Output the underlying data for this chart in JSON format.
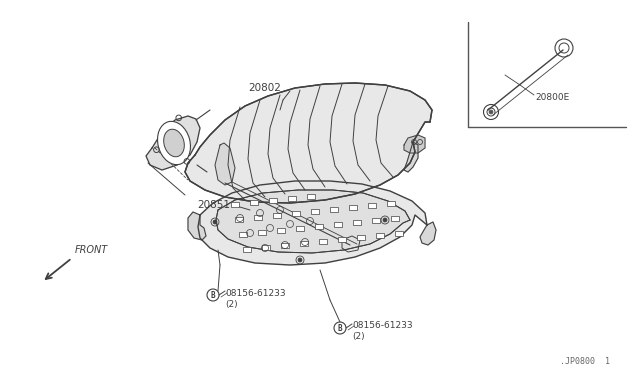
{
  "bg_color": "#ffffff",
  "line_color": "#404040",
  "fill_color": "#f0f0f0",
  "title_text": ".JP0800  1",
  "label_20802": "20802",
  "label_20851": "20851",
  "label_bolt1": "08156-61233",
  "label_bolt1b": "(2)",
  "label_bolt2": "08156-61233",
  "label_bolt2b": "(2)",
  "label_front": "FRONT",
  "label_inset": "20800E",
  "border_color": "#666666"
}
